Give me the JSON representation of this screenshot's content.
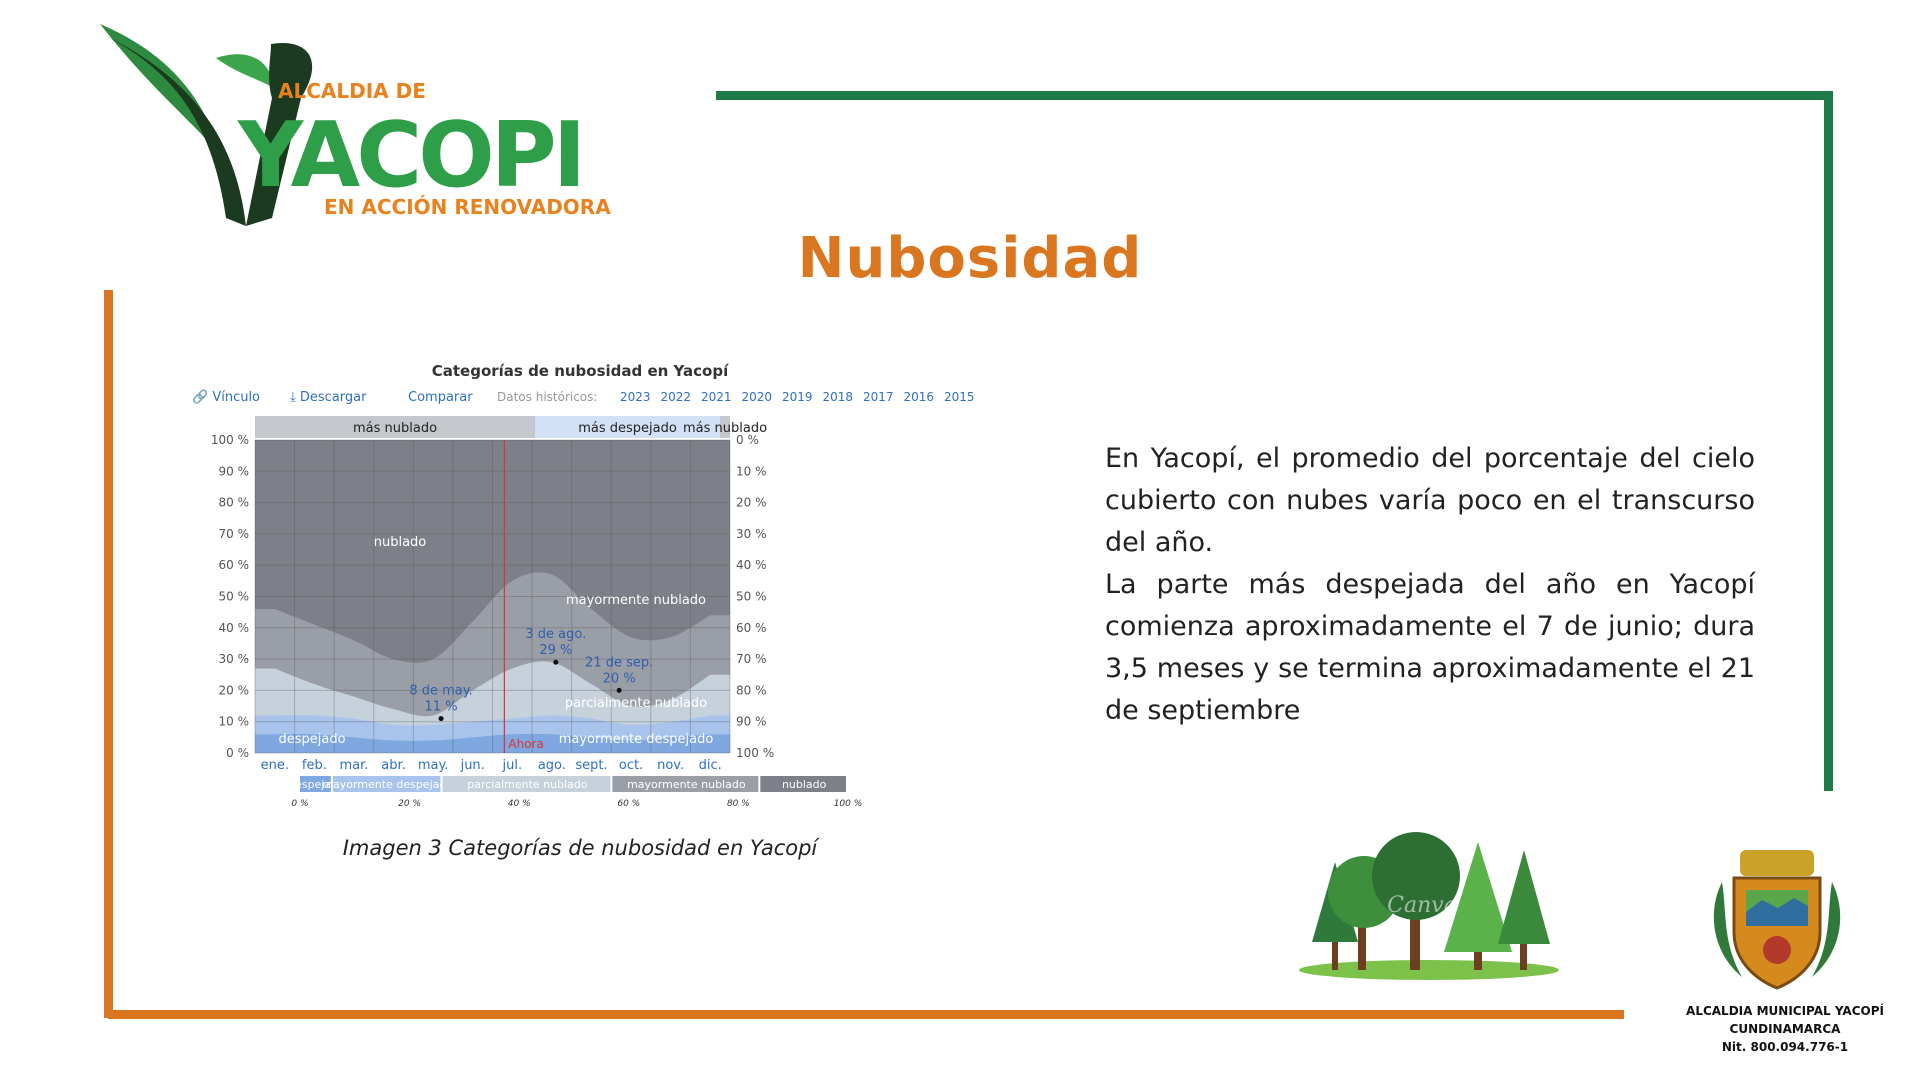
{
  "header": {
    "logo": {
      "line1": "ALCALDIA DE",
      "line2": "YACOPI",
      "line3": "EN ACCIÓN RENOVADORA"
    },
    "title": "Nubosidad"
  },
  "description": {
    "paragraph1": "En Yacopí, el promedio del porcentaje del cielo cubierto con nubes varía poco en el transcurso del año.",
    "paragraph2": "La parte más despejada del año en Yacopí comienza aproximadamente el 7 de junio; dura 3,5 meses y se termina aproximadamente el 21 de septiembre"
  },
  "caption": "Imagen 3 Categorías de nubosidad en Yacopí",
  "footer": {
    "watermark": "Canva",
    "org_line1": "ALCALDIA MUNICIPAL YACOPÍ",
    "org_line2": "CUNDINAMARCA",
    "org_line3": "Nit. 800.094.776-1"
  },
  "colors": {
    "accent_orange": "#d9761f",
    "accent_green": "#1e7a47",
    "logo_green": "#2e9e48"
  },
  "chart_data": {
    "type": "area",
    "title": "Categorías de nubosidad en Yacopí",
    "toolbar": {
      "link": "Vínculo",
      "download": "Descargar",
      "compare": "Comparar",
      "historic": "Datos históricos:",
      "years": [
        "2023",
        "2022",
        "2021",
        "2020",
        "2019",
        "2018",
        "2017",
        "2016",
        "2015"
      ]
    },
    "bands": [
      "más nublado",
      "más despejado",
      "más nublado"
    ],
    "categories": [
      "ene.",
      "feb.",
      "mar.",
      "abr.",
      "may.",
      "jun.",
      "jul.",
      "ago.",
      "sept.",
      "oct.",
      "nov.",
      "dic."
    ],
    "yticks_left": [
      "100 %",
      "90 %",
      "80 %",
      "70 %",
      "60 %",
      "50 %",
      "40 %",
      "30 %",
      "20 %",
      "10 %",
      "0 %"
    ],
    "yticks_right": [
      "0 %",
      "10 %",
      "20 %",
      "30 %",
      "40 %",
      "50 %",
      "60 %",
      "70 %",
      "80 %",
      "90 %",
      "100 %"
    ],
    "ylim": [
      0,
      100
    ],
    "series": [
      {
        "name": "despejado",
        "values": [
          6,
          6,
          5,
          4,
          4,
          5,
          6,
          6,
          5,
          4,
          5,
          6
        ],
        "color": "#7fa8e0"
      },
      {
        "name": "mayormente despejado",
        "values": [
          12,
          12,
          11,
          9,
          9,
          10,
          11,
          12,
          11,
          9,
          10,
          12
        ],
        "color": "#a9c4ec"
      },
      {
        "name": "parcialmente nublado",
        "values": [
          27,
          22,
          18,
          14,
          12,
          20,
          27,
          29,
          22,
          15,
          17,
          25
        ],
        "color": "#c7d1dc"
      },
      {
        "name": "mayormente nublado",
        "values": [
          46,
          41,
          36,
          30,
          30,
          42,
          55,
          57,
          46,
          37,
          37,
          44
        ],
        "color": "#9a9ea6"
      },
      {
        "name": "nublado",
        "values": [
          100,
          100,
          100,
          100,
          100,
          100,
          100,
          100,
          100,
          100,
          100,
          100
        ],
        "color": "#7d8088"
      }
    ],
    "annotations": [
      {
        "label": "8 de may.",
        "value": "11 %",
        "month_index": 4.2,
        "y": 11
      },
      {
        "label": "3 de ago.",
        "value": "29 %",
        "month_index": 7.1,
        "y": 29
      },
      {
        "label": "21 de sep.",
        "value": "20 %",
        "month_index": 8.7,
        "y": 20
      }
    ],
    "region_labels": [
      "nublado",
      "mayormente nublado",
      "parcialmente nublado",
      "despejado",
      "mayormente despejado"
    ],
    "now_label": "Ahora",
    "now_month_index": 6.0,
    "legend": {
      "items": [
        "despejado",
        "mayormente despejado",
        "parcialmente nublado",
        "mayormente nublado",
        "nublado"
      ],
      "ticks": [
        "0 %",
        "20 %",
        "40 %",
        "60 %",
        "80 %",
        "100 %"
      ]
    }
  }
}
